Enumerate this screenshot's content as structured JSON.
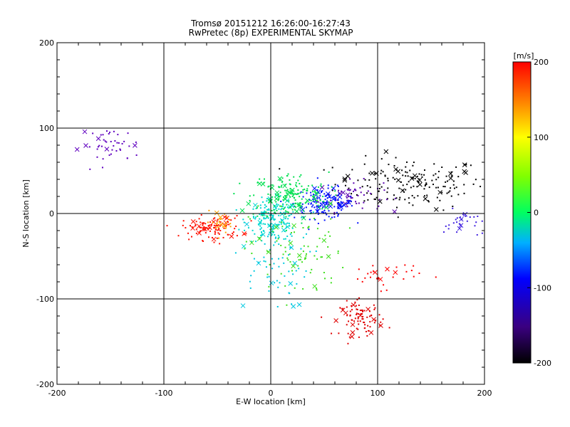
{
  "chart_data": {
    "type": "scatter",
    "title": "Tromsø 20151212 16:26:00-16:27:43",
    "subtitle": "RwPretec (8p) EXPERIMENTAL SKYMAP",
    "xlabel": "E-W location [km]",
    "ylabel": "N-S location [km]",
    "xlim": [
      -200,
      200
    ],
    "ylim": [
      -200,
      200
    ],
    "x_ticks": [
      "-200",
      "-100",
      "0",
      "100",
      "200"
    ],
    "y_ticks": [
      "-200",
      "-100",
      "0",
      "100",
      "200"
    ],
    "grid": true,
    "colorbar": {
      "label": "[m/s]",
      "range": [
        -200,
        200
      ],
      "ticks": [
        "200",
        "100",
        "0",
        "-100",
        "-200"
      ],
      "colormap": "rainbow-black-to-red"
    },
    "marker_types": [
      "dot",
      "x"
    ],
    "clusters": [
      {
        "name": "black-east-band",
        "color": "#000000",
        "center_x": 130,
        "center_y": 35,
        "spread_x": 35,
        "spread_y": 15,
        "count": 180,
        "velocity": -200
      },
      {
        "name": "purple-east-band",
        "color": "#5a00b0",
        "center_x": 75,
        "center_y": 20,
        "spread_x": 15,
        "spread_y": 9,
        "count": 60,
        "velocity": -150
      },
      {
        "name": "blue-east-band",
        "color": "#0010ff",
        "center_x": 50,
        "center_y": 12,
        "spread_x": 14,
        "spread_y": 9,
        "count": 140,
        "velocity": -110
      },
      {
        "name": "cyan-center",
        "color": "#00d8d0",
        "center_x": 2,
        "center_y": -8,
        "spread_x": 12,
        "spread_y": 12,
        "count": 160,
        "velocity": -40
      },
      {
        "name": "green-center",
        "color": "#00e050",
        "center_x": 18,
        "center_y": 20,
        "spread_x": 18,
        "spread_y": 14,
        "count": 180,
        "velocity": 0
      },
      {
        "name": "cyan-south",
        "color": "#00c8e0",
        "center_x": 0,
        "center_y": -55,
        "spread_x": 18,
        "spread_y": 28,
        "count": 70,
        "velocity": -50
      },
      {
        "name": "green-south",
        "color": "#40e020",
        "center_x": 25,
        "center_y": -45,
        "spread_x": 22,
        "spread_y": 28,
        "count": 90,
        "velocity": 10
      },
      {
        "name": "red-west",
        "color": "#ff1000",
        "center_x": -55,
        "center_y": -17,
        "spread_x": 14,
        "spread_y": 7,
        "count": 110,
        "velocity": 190
      },
      {
        "name": "orange-west",
        "color": "#ffa000",
        "center_x": -45,
        "center_y": -10,
        "spread_x": 8,
        "spread_y": 6,
        "count": 25,
        "velocity": 120
      },
      {
        "name": "purple-northwest",
        "color": "#6000c0",
        "center_x": -150,
        "center_y": 80,
        "spread_x": 14,
        "spread_y": 10,
        "count": 45,
        "velocity": -160
      },
      {
        "name": "red-southeast",
        "color": "#e00000",
        "center_x": 85,
        "center_y": -123,
        "spread_x": 10,
        "spread_y": 10,
        "count": 90,
        "velocity": 200
      },
      {
        "name": "red-east-mid",
        "color": "#ff0000",
        "center_x": 105,
        "center_y": -72,
        "spread_x": 18,
        "spread_y": 8,
        "count": 30,
        "velocity": 190
      },
      {
        "name": "blue-far-east",
        "color": "#4020e0",
        "center_x": 180,
        "center_y": -12,
        "spread_x": 9,
        "spread_y": 8,
        "count": 30,
        "velocity": -120
      }
    ]
  }
}
